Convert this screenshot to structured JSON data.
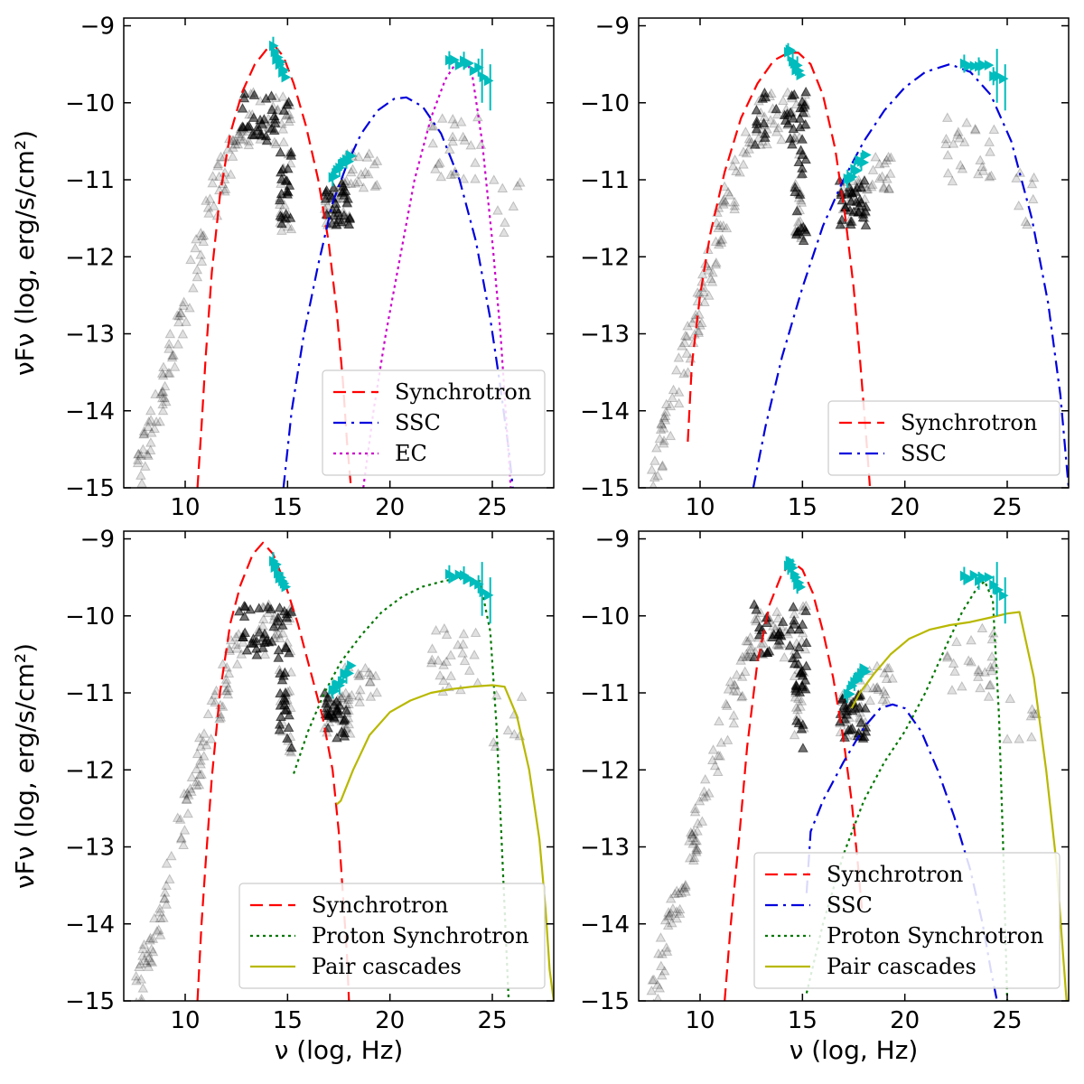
{
  "figure": {
    "shared_ylabel": "νFν (log, erg/s/cm²)",
    "shared_xlabel": "ν (log, Hz)"
  },
  "colors": {
    "synchrotron": "#ff0000",
    "ssc": "#0000dd",
    "ec": "#cc00cc",
    "proton_synchrotron": "#007700",
    "pair_cascades": "#b8b800",
    "data_points": "#00bcbc",
    "archival": "#000000"
  },
  "chart_data": [
    {
      "type": "line",
      "panel": "top-left",
      "xlim": [
        7,
        28
      ],
      "ylim": [
        -15,
        -8.9
      ],
      "xticks": [
        10,
        15,
        20,
        25
      ],
      "yticks": [
        -9,
        -10,
        -11,
        -12,
        -13,
        -14,
        -15
      ],
      "ylabel": "νFν (log, erg/s/cm²)",
      "xlabel": "",
      "legend": "lower-right",
      "series": [
        {
          "name": "Synchrotron",
          "key": "synchrotron",
          "style": "dashed",
          "x": [
            10.6,
            10.8,
            11.0,
            11.3,
            11.7,
            12.2,
            12.8,
            13.4,
            14.0,
            14.4,
            14.8,
            15.3,
            15.9,
            16.5,
            17.0,
            17.4,
            17.7,
            17.9,
            18.1,
            18.2
          ],
          "y": [
            -15,
            -14.2,
            -13.3,
            -12.2,
            -11.2,
            -10.4,
            -9.85,
            -9.5,
            -9.3,
            -9.27,
            -9.4,
            -9.75,
            -10.3,
            -11.0,
            -11.8,
            -12.7,
            -13.6,
            -14.4,
            -15.0,
            -15.2
          ]
        },
        {
          "name": "SSC",
          "key": "ssc",
          "style": "dashdot",
          "x": [
            14.8,
            15.2,
            15.8,
            16.5,
            17.2,
            17.9,
            18.6,
            19.4,
            20.2,
            20.8,
            21.6,
            22.5,
            23.4,
            24.2,
            24.9,
            25.4,
            25.8,
            26.0
          ],
          "y": [
            -15,
            -14.0,
            -13.0,
            -12.1,
            -11.3,
            -10.8,
            -10.4,
            -10.1,
            -9.95,
            -9.93,
            -10.05,
            -10.4,
            -11.0,
            -11.8,
            -12.8,
            -13.7,
            -14.5,
            -15.0
          ]
        },
        {
          "name": "EC",
          "key": "ec",
          "style": "dotted",
          "x": [
            18.7,
            19.2,
            19.8,
            20.5,
            21.2,
            22.0,
            22.7,
            23.3,
            23.6,
            24.0,
            24.5,
            25.0,
            25.4,
            25.7,
            25.9
          ],
          "y": [
            -15,
            -14.0,
            -13.0,
            -12.0,
            -11.0,
            -10.2,
            -9.7,
            -9.45,
            -9.42,
            -9.6,
            -10.5,
            -11.8,
            -13.0,
            -14.2,
            -15.0
          ]
        }
      ]
    },
    {
      "type": "line",
      "panel": "top-right",
      "xlim": [
        7,
        28
      ],
      "ylim": [
        -15,
        -8.9
      ],
      "xticks": [
        10,
        15,
        20,
        25
      ],
      "yticks": [
        -9,
        -10,
        -11,
        -12,
        -13,
        -14,
        -15
      ],
      "ylabel": "",
      "xlabel": "",
      "legend": "lower-right",
      "series": [
        {
          "name": "Synchrotron",
          "key": "synchrotron",
          "style": "dashed",
          "x": [
            9.4,
            9.6,
            10.0,
            10.5,
            11.2,
            12.0,
            12.8,
            13.6,
            14.3,
            14.8,
            15.4,
            16.0,
            16.6,
            17.1,
            17.5,
            17.8,
            18.1,
            18.3
          ],
          "y": [
            -14.4,
            -13.4,
            -12.5,
            -11.7,
            -10.9,
            -10.2,
            -9.75,
            -9.45,
            -9.35,
            -9.35,
            -9.5,
            -9.9,
            -10.6,
            -11.5,
            -12.4,
            -13.3,
            -14.3,
            -15.0
          ]
        },
        {
          "name": "SSC",
          "key": "ssc",
          "style": "dashdot",
          "x": [
            12.6,
            13.2,
            14.0,
            15.0,
            16.0,
            17.0,
            18.0,
            19.0,
            20.0,
            21.0,
            22.2,
            23.2,
            24.2,
            25.2,
            26.2,
            27.0,
            27.6,
            28.0
          ],
          "y": [
            -15,
            -14.2,
            -13.3,
            -12.4,
            -11.6,
            -11.0,
            -10.5,
            -10.1,
            -9.8,
            -9.6,
            -9.5,
            -9.6,
            -9.9,
            -10.5,
            -11.5,
            -12.6,
            -13.8,
            -15.0
          ]
        }
      ]
    },
    {
      "type": "line",
      "panel": "bottom-left",
      "xlim": [
        7,
        28
      ],
      "ylim": [
        -15,
        -8.9
      ],
      "xticks": [
        10,
        15,
        20,
        25
      ],
      "yticks": [
        -9,
        -10,
        -11,
        -12,
        -13,
        -14,
        -15
      ],
      "ylabel": "νFν (log, erg/s/cm²)",
      "xlabel": "ν (log, Hz)",
      "legend": "lower-right",
      "series": [
        {
          "name": "Synchrotron",
          "key": "synchrotron",
          "style": "dashed",
          "x": [
            10.6,
            10.8,
            11.0,
            11.3,
            11.7,
            12.2,
            12.7,
            13.3,
            13.8,
            14.3,
            14.9,
            15.5,
            16.1,
            16.7,
            17.2,
            17.5,
            17.7,
            17.9,
            18.0
          ],
          "y": [
            -15,
            -14.0,
            -13.2,
            -12.1,
            -11.0,
            -10.1,
            -9.6,
            -9.2,
            -9.05,
            -9.2,
            -9.6,
            -10.1,
            -10.7,
            -11.3,
            -12.0,
            -12.8,
            -13.6,
            -14.4,
            -15.0
          ]
        },
        {
          "name": "Proton Synchrotron",
          "key": "proton_synchrotron",
          "style": "dotted",
          "x": [
            15.3,
            16.0,
            16.8,
            17.6,
            18.6,
            19.6,
            20.6,
            21.6,
            22.6,
            23.6,
            24.4,
            24.9,
            25.2,
            25.4,
            25.6,
            25.8
          ],
          "y": [
            -12.05,
            -11.5,
            -11.0,
            -10.6,
            -10.25,
            -9.95,
            -9.75,
            -9.62,
            -9.55,
            -9.5,
            -9.55,
            -10.2,
            -11.4,
            -12.6,
            -13.8,
            -15.0
          ]
        },
        {
          "name": "Pair cascades",
          "key": "pair_cascades",
          "style": "solid",
          "x": [
            17.4,
            17.6,
            18.2,
            19.0,
            20.0,
            21.0,
            22.0,
            23.0,
            24.0,
            25.0,
            25.6,
            26.2,
            26.8,
            27.3,
            27.6,
            27.8,
            28.0
          ],
          "y": [
            -12.45,
            -12.4,
            -12.0,
            -11.55,
            -11.25,
            -11.1,
            -11.0,
            -10.95,
            -10.92,
            -10.9,
            -10.92,
            -11.3,
            -12.0,
            -12.9,
            -13.8,
            -14.6,
            -15.0
          ]
        }
      ]
    },
    {
      "type": "line",
      "panel": "bottom-right",
      "xlim": [
        7,
        28
      ],
      "ylim": [
        -15,
        -8.9
      ],
      "xticks": [
        10,
        15,
        20,
        25
      ],
      "yticks": [
        -9,
        -10,
        -11,
        -12,
        -13,
        -14,
        -15
      ],
      "ylabel": "",
      "xlabel": "ν (log, Hz)",
      "legend": "lower-right",
      "series": [
        {
          "name": "Synchrotron",
          "key": "synchrotron",
          "style": "dashed",
          "x": [
            11.2,
            11.5,
            11.9,
            12.3,
            12.8,
            13.4,
            14.0,
            14.5,
            15.0,
            15.5,
            16.0,
            16.5,
            17.0,
            17.4,
            17.7,
            17.9
          ],
          "y": [
            -15,
            -14.0,
            -12.9,
            -11.7,
            -10.6,
            -9.85,
            -9.45,
            -9.3,
            -9.4,
            -9.7,
            -10.2,
            -10.8,
            -11.6,
            -12.4,
            -13.2,
            -13.8
          ]
        },
        {
          "name": "SSC",
          "key": "ssc",
          "style": "dashdot",
          "x": [
            15.2,
            15.4,
            16.0,
            17.0,
            18.0,
            18.8,
            19.4,
            20.0,
            20.8,
            21.6,
            22.4,
            23.2,
            23.8,
            24.2,
            24.5
          ],
          "y": [
            -13.6,
            -12.8,
            -12.4,
            -11.9,
            -11.45,
            -11.2,
            -11.15,
            -11.2,
            -11.5,
            -12.0,
            -12.6,
            -13.3,
            -14.0,
            -14.6,
            -15.0
          ]
        },
        {
          "name": "Proton Synchrotron",
          "key": "proton_synchrotron",
          "style": "dotted",
          "x": [
            15.2,
            16.0,
            17.0,
            18.0,
            19.0,
            20.0,
            21.0,
            22.0,
            22.8,
            23.5,
            23.9,
            24.3,
            24.6,
            24.8,
            25.0
          ],
          "y": [
            -14.9,
            -14.0,
            -13.1,
            -12.4,
            -11.9,
            -11.5,
            -11.0,
            -10.4,
            -9.95,
            -9.65,
            -9.55,
            -9.8,
            -11.3,
            -13.0,
            -15.0
          ]
        },
        {
          "name": "Pair cascades",
          "key": "pair_cascades",
          "style": "solid",
          "x": [
            17.4,
            17.8,
            18.5,
            19.3,
            20.2,
            21.2,
            22.2,
            23.2,
            24.2,
            25.0,
            25.6,
            26.3,
            26.9,
            27.4,
            27.7,
            27.9
          ],
          "y": [
            -11.2,
            -11.0,
            -10.75,
            -10.5,
            -10.3,
            -10.18,
            -10.12,
            -10.08,
            -10.02,
            -9.97,
            -9.95,
            -10.8,
            -12.0,
            -13.2,
            -14.3,
            -15.0
          ]
        }
      ]
    }
  ]
}
